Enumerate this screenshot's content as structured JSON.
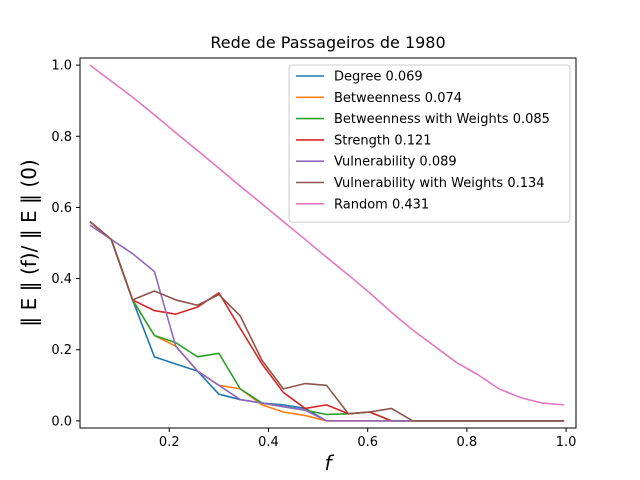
{
  "chart_data": {
    "type": "line",
    "title": "Rede de Passageiros de 1980",
    "xlabel": "f",
    "ylabel": "‖ E ‖ (f)/ ‖ E ‖ (0)",
    "xlim": [
      0.02,
      1.02
    ],
    "ylim": [
      -0.02,
      1.02
    ],
    "xticks": [
      0.2,
      0.4,
      0.6,
      0.8,
      1.0
    ],
    "xtick_labels": [
      "0.2",
      "0.4",
      "0.6",
      "0.8",
      "1.0"
    ],
    "yticks": [
      0.0,
      0.2,
      0.4,
      0.6,
      0.8,
      1.0
    ],
    "ytick_labels": [
      "0.0",
      "0.2",
      "0.4",
      "0.6",
      "0.8",
      "1.0"
    ],
    "grid": false,
    "legend_position": "top-right",
    "x": [
      0.04,
      0.083,
      0.126,
      0.17,
      0.213,
      0.257,
      0.3,
      0.343,
      0.387,
      0.43,
      0.474,
      0.517,
      0.561,
      0.604,
      0.648,
      0.691,
      0.735,
      0.778,
      0.822,
      0.865,
      0.909,
      0.952,
      0.996
    ],
    "series": [
      {
        "name": "Degree 0.069",
        "color": "#1f77b4",
        "values": [
          0.56,
          0.51,
          0.34,
          0.18,
          0.16,
          0.14,
          0.075,
          0.06,
          0.05,
          0.045,
          0.035,
          0.0,
          0.0,
          0.0,
          0.0,
          0.0,
          0.0,
          0.0,
          0.0,
          0.0,
          0.0,
          0.0,
          0.0
        ]
      },
      {
        "name": "Betweenness 0.074",
        "color": "#ff7f0e",
        "values": [
          0.56,
          0.51,
          0.34,
          0.24,
          0.21,
          0.14,
          0.1,
          0.09,
          0.045,
          0.025,
          0.015,
          0.0,
          0.0,
          0.0,
          0.0,
          0.0,
          0.0,
          0.0,
          0.0,
          0.0,
          0.0,
          0.0,
          0.0
        ]
      },
      {
        "name": "Betweenness with Weights 0.085",
        "color": "#2ca02c",
        "values": [
          0.56,
          0.51,
          0.34,
          0.24,
          0.22,
          0.18,
          0.19,
          0.09,
          0.05,
          0.04,
          0.03,
          0.018,
          0.02,
          0.025,
          0.0,
          0.0,
          0.0,
          0.0,
          0.0,
          0.0,
          0.0,
          0.0,
          0.0
        ]
      },
      {
        "name": "Strength 0.121",
        "color": "#d62728",
        "values": [
          0.56,
          0.51,
          0.34,
          0.31,
          0.3,
          0.32,
          0.36,
          0.26,
          0.16,
          0.08,
          0.035,
          0.045,
          0.02,
          0.025,
          0.0,
          0.0,
          0.0,
          0.0,
          0.0,
          0.0,
          0.0,
          0.0,
          0.0
        ]
      },
      {
        "name": "Vulnerability 0.089",
        "color": "#9467bd",
        "values": [
          0.55,
          0.51,
          0.47,
          0.42,
          0.21,
          0.14,
          0.1,
          0.06,
          0.05,
          0.04,
          0.03,
          0.0,
          0.0,
          0.0,
          0.0,
          0.0,
          0.0,
          0.0,
          0.0,
          0.0,
          0.0,
          0.0,
          0.0
        ]
      },
      {
        "name": "Vulnerability with Weights 0.134",
        "color": "#8c564b",
        "values": [
          0.56,
          0.51,
          0.34,
          0.365,
          0.34,
          0.325,
          0.355,
          0.295,
          0.17,
          0.09,
          0.105,
          0.1,
          0.02,
          0.025,
          0.035,
          0.0,
          0.0,
          0.0,
          0.0,
          0.0,
          0.0,
          0.0,
          0.0
        ]
      },
      {
        "name": "Random 0.431",
        "color": "#e377c2",
        "values": [
          1.0,
          0.955,
          0.91,
          0.86,
          0.81,
          0.76,
          0.71,
          0.66,
          0.61,
          0.56,
          0.51,
          0.46,
          0.41,
          0.36,
          0.305,
          0.255,
          0.21,
          0.165,
          0.13,
          0.09,
          0.065,
          0.05,
          0.045
        ]
      }
    ]
  }
}
